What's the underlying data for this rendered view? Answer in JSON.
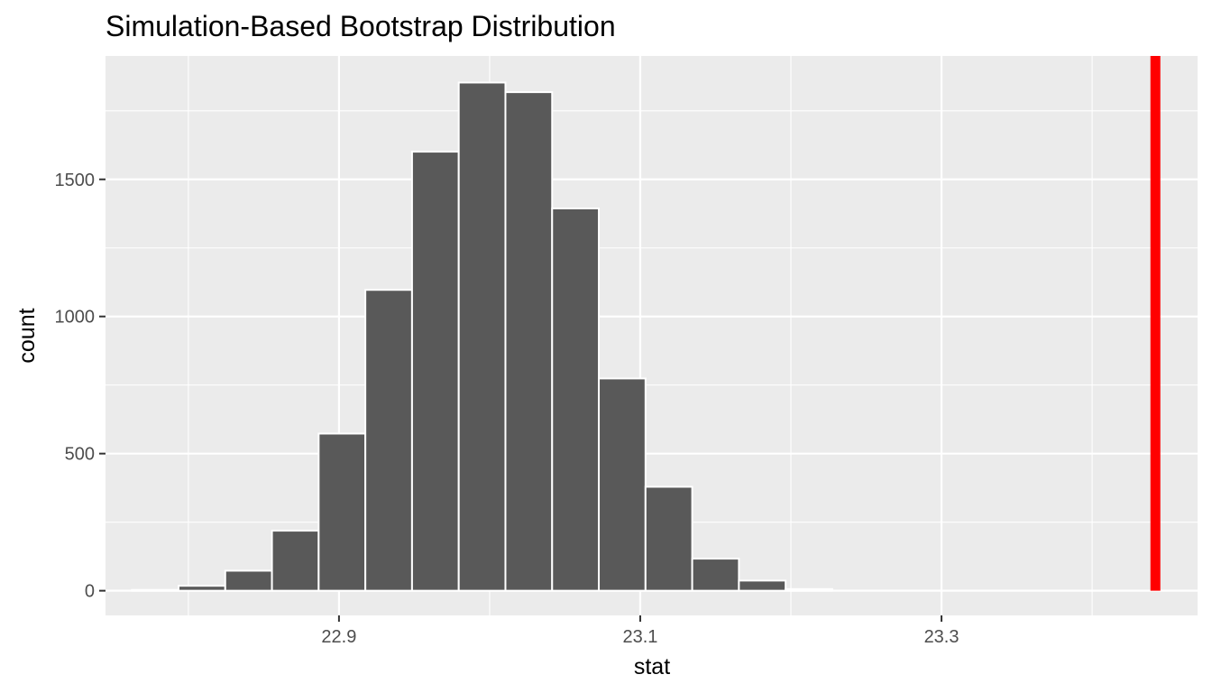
{
  "chart_data": {
    "type": "bar",
    "title": "Simulation-Based Bootstrap Distribution",
    "xlabel": "stat",
    "ylabel": "count",
    "bin_width": 0.031,
    "bins": [
      {
        "x_center": 22.778,
        "count": 3
      },
      {
        "x_center": 22.809,
        "count": 18
      },
      {
        "x_center": 22.84,
        "count": 73
      },
      {
        "x_center": 22.871,
        "count": 219
      },
      {
        "x_center": 22.902,
        "count": 573
      },
      {
        "x_center": 22.933,
        "count": 1097
      },
      {
        "x_center": 22.964,
        "count": 1601
      },
      {
        "x_center": 22.995,
        "count": 1853
      },
      {
        "x_center": 23.026,
        "count": 1818
      },
      {
        "x_center": 23.057,
        "count": 1394
      },
      {
        "x_center": 23.088,
        "count": 774
      },
      {
        "x_center": 23.119,
        "count": 379
      },
      {
        "x_center": 23.15,
        "count": 117
      },
      {
        "x_center": 23.181,
        "count": 37
      },
      {
        "x_center": 23.212,
        "count": 6
      }
    ],
    "xlim": [
      22.745,
      23.47
    ],
    "ylim": [
      -90,
      1950
    ],
    "x_major_ticks": [
      22.9,
      23.1,
      23.3
    ],
    "x_tick_labels": [
      "22.9",
      "23.1",
      "23.3"
    ],
    "x_minor_ticks": [
      22.8,
      23.0,
      23.2,
      23.4
    ],
    "y_major_ticks": [
      0,
      500,
      1000,
      1500
    ],
    "y_tick_labels": [
      "0",
      "500",
      "1000",
      "1500"
    ],
    "y_minor_ticks": [
      250,
      750,
      1250,
      1750
    ],
    "vline": {
      "x": 23.442,
      "color": "#ff0000"
    },
    "grid": true,
    "legend": "none",
    "colors": {
      "panel_background": "#ebebeb",
      "grid": "#ffffff",
      "bar_fill": "#595959",
      "bar_stroke": "#ffffff",
      "tick_text": "#4d4d4d",
      "text": "#000000"
    }
  }
}
